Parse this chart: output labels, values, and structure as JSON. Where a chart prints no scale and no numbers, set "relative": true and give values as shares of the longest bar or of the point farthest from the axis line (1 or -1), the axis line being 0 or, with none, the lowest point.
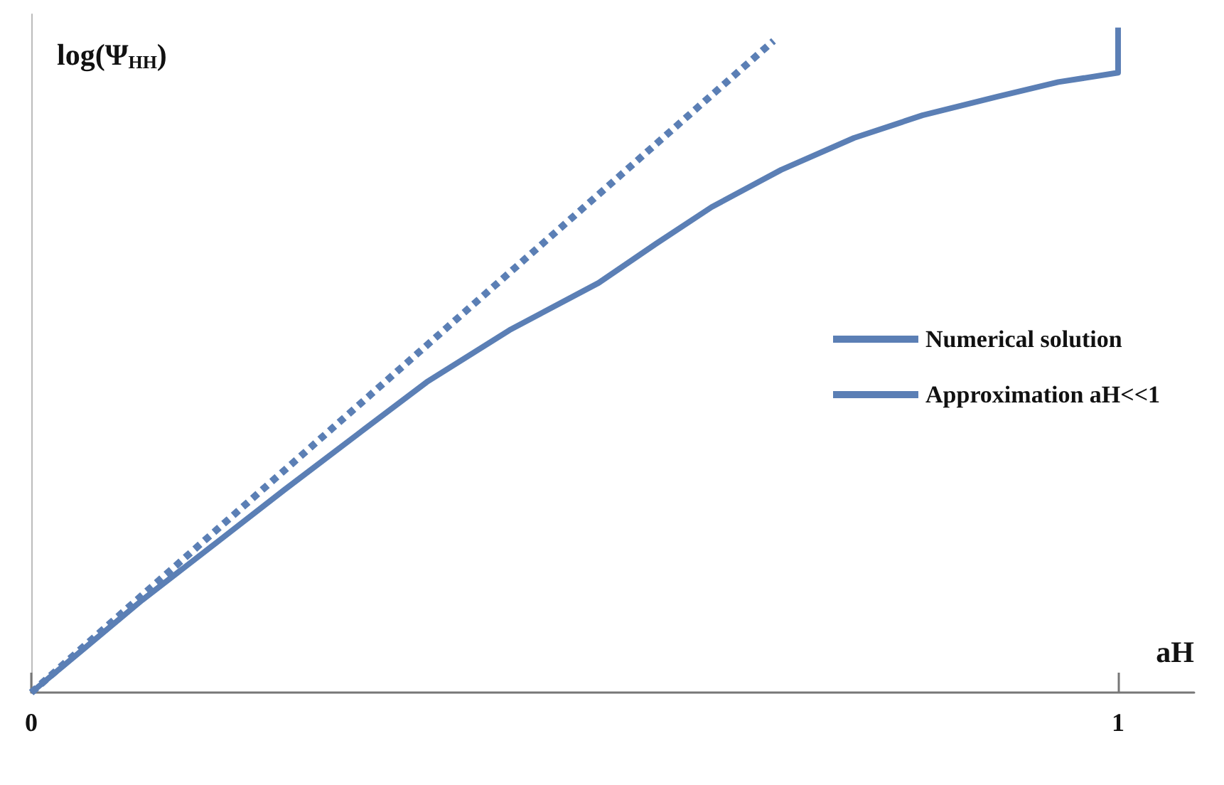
{
  "chart_data": {
    "type": "line",
    "relative": true,
    "xlabel": "aH",
    "ylabel": "log(Ψ$_{HH}$)",
    "xlim": [
      0,
      1.07
    ],
    "xticks": [
      0,
      1
    ],
    "grid": false,
    "legend": "right",
    "marker": "none",
    "series": [
      {
        "name": "Numerical solution",
        "color": "#5b7fb5",
        "line_style": "solid",
        "x": [
          0,
          0.05,
          0.102,
          0.17,
          0.233,
          0.3,
          0.364,
          0.44,
          0.522,
          0.575,
          0.626,
          0.69,
          0.757,
          0.82,
          0.889,
          0.945,
          1.0,
          1.0
        ],
        "values": [
          0,
          0.068,
          0.139,
          0.225,
          0.305,
          0.388,
          0.467,
          0.545,
          0.616,
          0.675,
          0.73,
          0.786,
          0.834,
          0.868,
          0.896,
          0.918,
          0.932,
          1.0
        ]
      },
      {
        "name": "Approximation aH<<1",
        "color": "#5b7fb5",
        "line_style": "dashed",
        "x": [
          0,
          0.683
        ],
        "values": [
          0,
          0.98
        ]
      }
    ]
  }
}
